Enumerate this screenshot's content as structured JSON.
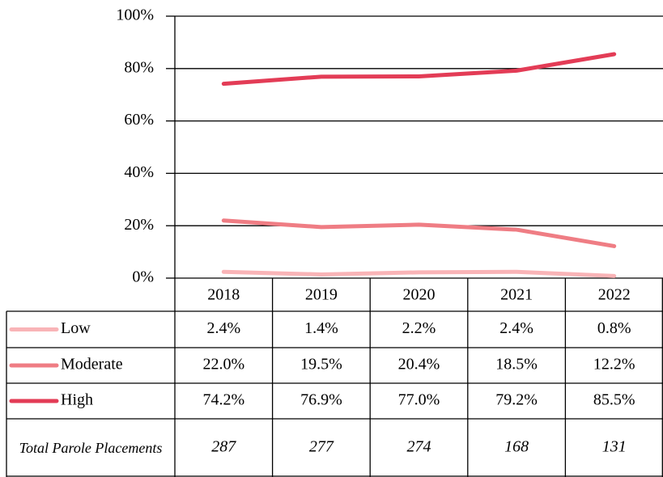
{
  "chart_data": {
    "type": "line",
    "categories": [
      "2018",
      "2019",
      "2020",
      "2021",
      "2022"
    ],
    "series": [
      {
        "name": "Low",
        "color": "#f9b4b7",
        "values": [
          2.4,
          1.4,
          2.2,
          2.4,
          0.8
        ],
        "value_labels": [
          "2.4%",
          "1.4%",
          "2.2%",
          "2.4%",
          "0.8%"
        ]
      },
      {
        "name": "Moderate",
        "color": "#ef7d84",
        "values": [
          22.0,
          19.5,
          20.4,
          18.5,
          12.2
        ],
        "value_labels": [
          "22.0%",
          "19.5%",
          "20.4%",
          "18.5%",
          "12.2%"
        ]
      },
      {
        "name": "High",
        "color": "#e33c56",
        "values": [
          74.2,
          76.9,
          77.0,
          79.2,
          85.5
        ],
        "value_labels": [
          "74.2%",
          "76.9%",
          "77.0%",
          "79.2%",
          "85.5%"
        ]
      }
    ],
    "totals": {
      "label": "Total Parole Placements",
      "values": [
        287,
        277,
        274,
        168,
        131
      ]
    },
    "ylim": [
      0,
      100
    ],
    "yticks": [
      {
        "value": 0,
        "label": "0%"
      },
      {
        "value": 20,
        "label": "20%"
      },
      {
        "value": 40,
        "label": "40%"
      },
      {
        "value": 60,
        "label": "60%"
      },
      {
        "value": 80,
        "label": "80%"
      },
      {
        "value": 100,
        "label": "100%"
      }
    ],
    "grid": true
  }
}
